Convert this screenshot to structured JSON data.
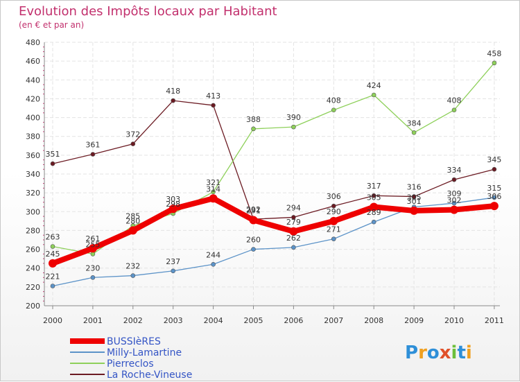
{
  "title": "Evolution des Impôts locaux par Habitant",
  "subtitle": "(en € et par an)",
  "logo": {
    "text": "Proxiti",
    "letters": [
      "P",
      "r",
      "o",
      "x",
      "i",
      "t",
      "i"
    ]
  },
  "chart_data": {
    "type": "line",
    "title": "Evolution des Impôts locaux par Habitant",
    "subtitle": "(en € et par an)",
    "xlabel": "",
    "ylabel": "",
    "x": [
      "2000",
      "2001",
      "2002",
      "2003",
      "2004",
      "2005",
      "2006",
      "2007",
      "2008",
      "2009",
      "2010",
      "2011"
    ],
    "ylim": [
      200,
      480
    ],
    "yticks": [
      "200",
      "220",
      "240",
      "260",
      "280",
      "300",
      "320",
      "340",
      "360",
      "380",
      "400",
      "420",
      "440",
      "460",
      "480"
    ],
    "grid": true,
    "legend_position": "bottom-left",
    "series": [
      {
        "name": "La Roche-Vineuse",
        "color": "#6b1a22",
        "values": [
          351,
          361,
          372,
          418,
          413,
          292,
          294,
          306,
          317,
          316,
          334,
          345
        ],
        "labels": [
          "351",
          "361",
          "372",
          "418",
          "413",
          "292",
          "294",
          "306",
          "317",
          "316",
          "334",
          "345"
        ]
      },
      {
        "name": "Pierreclos",
        "color": "#8ed05a",
        "values": [
          263,
          255,
          285,
          298,
          321,
          388,
          390,
          408,
          424,
          384,
          408,
          458
        ],
        "labels": [
          "263",
          "255",
          "285",
          "298",
          "321",
          "388",
          "390",
          "408",
          "424",
          "384",
          "408",
          "458"
        ]
      },
      {
        "name": "Milly-Lamartine",
        "color": "#5c93c8",
        "values": [
          221,
          230,
          232,
          237,
          244,
          260,
          262,
          271,
          289,
          305,
          309,
          315
        ],
        "labels": [
          "221",
          "230",
          "232",
          "237",
          "244",
          "260",
          "262",
          "271",
          "289",
          "305",
          "309",
          "315"
        ]
      },
      {
        "name": "BUSSIèRES",
        "color": "#ee0000",
        "values": [
          245,
          261,
          280,
          303,
          314,
          291,
          279,
          290,
          305,
          301,
          302,
          306
        ],
        "labels": [
          "245",
          "261",
          "280",
          "303",
          "314",
          "291",
          "279",
          "290",
          "305",
          "301",
          "302",
          "306"
        ]
      }
    ]
  }
}
